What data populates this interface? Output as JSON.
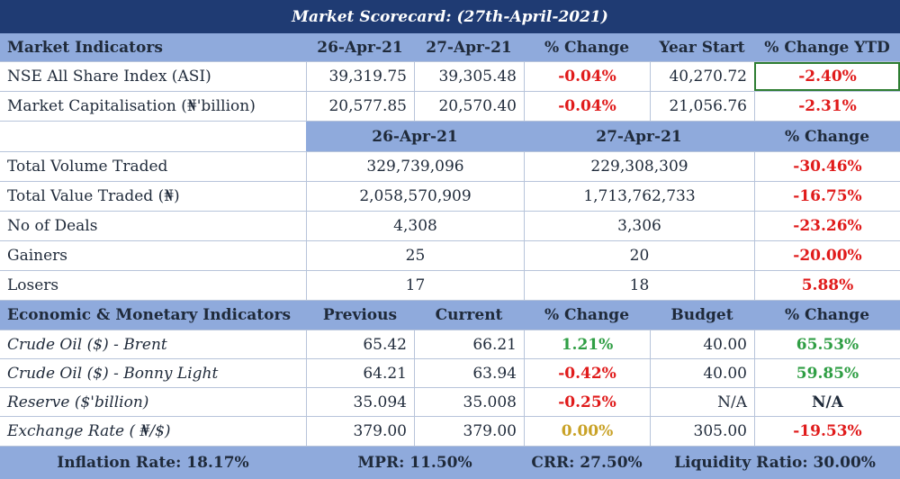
{
  "title": "Market Scorecard: (27th-April-2021)",
  "market": {
    "headers": [
      "Market Indicators",
      "26-Apr-21",
      "27-Apr-21",
      "% Change",
      "Year Start",
      "% Change YTD"
    ],
    "rows": [
      {
        "label": "NSE All Share Index (ASI)",
        "d1": "39,319.75",
        "d2": "39,305.48",
        "chg": "-0.04%",
        "ys": "40,270.72",
        "ytd": "-2.40%"
      },
      {
        "label": "Market Capitalisation (₦'billion)",
        "d1": "20,577.85",
        "d2": "20,570.40",
        "chg": "-0.04%",
        "ys": "21,056.76",
        "ytd": "-2.31%"
      }
    ]
  },
  "trading": {
    "headers": [
      "26-Apr-21",
      "27-Apr-21",
      "% Change"
    ],
    "rows": [
      {
        "label": "Total Volume Traded",
        "d1": "329,739,096",
        "d2": "229,308,309",
        "chg": "-30.46%"
      },
      {
        "label": "Total Value Traded (₦)",
        "d1": "2,058,570,909",
        "d2": "1,713,762,733",
        "chg": "-16.75%"
      },
      {
        "label": "No of Deals",
        "d1": "4,308",
        "d2": "3,306",
        "chg": "-23.26%"
      },
      {
        "label": "Gainers",
        "d1": "25",
        "d2": "20",
        "chg": "-20.00%"
      },
      {
        "label": "Losers",
        "d1": "17",
        "d2": "18",
        "chg": "5.88%"
      }
    ]
  },
  "economic": {
    "headers": [
      "Economic & Monetary Indicators",
      "Previous",
      "Current",
      "% Change",
      "Budget",
      "% Change"
    ],
    "rows": [
      {
        "label": "Crude Oil ($) - Brent",
        "prev": "65.42",
        "cur": "66.21",
        "chg": "1.21%",
        "budget": "40.00",
        "chg2": "65.53%"
      },
      {
        "label": "Crude Oil ($) - Bonny Light",
        "prev": "64.21",
        "cur": "63.94",
        "chg": "-0.42%",
        "budget": "40.00",
        "chg2": "59.85%"
      },
      {
        "label": "Reserve ($'billion)",
        "prev": "35.094",
        "cur": "35.008",
        "chg": "-0.25%",
        "budget": "N/A",
        "chg2": "N/A"
      },
      {
        "label": "Exchange Rate ( ₦/$)",
        "prev": "379.00",
        "cur": "379.00",
        "chg": "0.00%",
        "budget": "305.00",
        "chg2": "-19.53%"
      }
    ]
  },
  "footer": {
    "inflation": "Inflation Rate: 18.17%",
    "mpr": "MPR: 11.50%",
    "crr": "CRR: 27.50%",
    "liquidity": "Liquidity Ratio: 30.00%"
  },
  "colors": {
    "title_bg": "#1f3b73",
    "header_bg": "#8faadc",
    "negative": "#e01b1b",
    "positive": "#2f9e44",
    "neutral": "#c9a227"
  }
}
